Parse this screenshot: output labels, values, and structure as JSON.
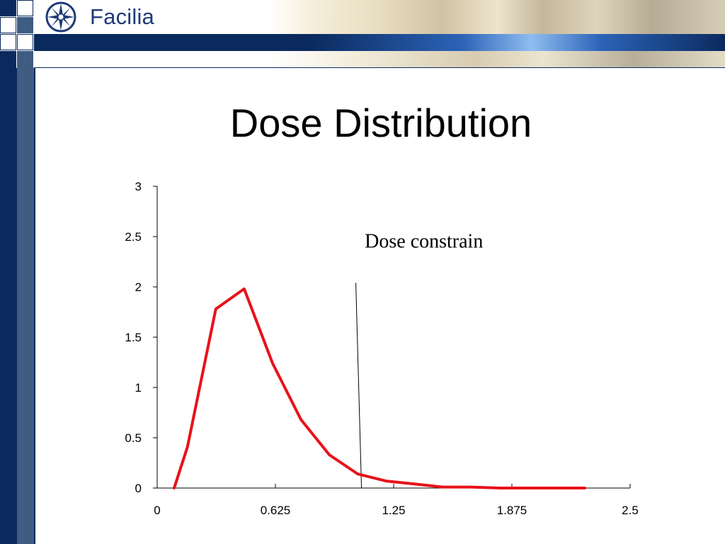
{
  "header": {
    "logo_text": "Facilia",
    "colors": {
      "navy": "#0a2a5e",
      "steel": "#3f5d82",
      "logo_text": "#1f3a78"
    },
    "logo_icon": "compass-star-icon"
  },
  "slide": {
    "title": "Dose Distribution"
  },
  "chart_data": {
    "type": "line",
    "title": "",
    "xlabel": "",
    "ylabel": "",
    "xlim": [
      0,
      2.5
    ],
    "ylim": [
      0,
      3
    ],
    "x_ticks": [
      "0",
      "0.625",
      "1.25",
      "1.875",
      "2.5"
    ],
    "y_ticks": [
      "0",
      "0.5",
      "1",
      "1.5",
      "2",
      "2.5",
      "3"
    ],
    "grid": false,
    "legend": "none",
    "series": [
      {
        "color": "#e8121a",
        "x": [
          0.09,
          0.16,
          0.31,
          0.46,
          0.61,
          0.76,
          0.91,
          1.06,
          1.21,
          1.36,
          1.51,
          1.66,
          1.81,
          1.96,
          2.11,
          2.26
        ],
        "y": [
          0.0,
          0.41,
          1.78,
          1.98,
          1.24,
          0.68,
          0.33,
          0.14,
          0.07,
          0.04,
          0.01,
          0.01,
          0.0,
          0.0,
          0.0,
          0.0
        ]
      }
    ],
    "annotations": [
      {
        "text": "Dose constrain",
        "x": 1.41,
        "y": 2.39
      }
    ],
    "reference_line": {
      "x_top": 1.05,
      "y_top": 2.04,
      "x_bottom": 1.08,
      "y_bottom": 0.0,
      "color": "#000000"
    }
  }
}
